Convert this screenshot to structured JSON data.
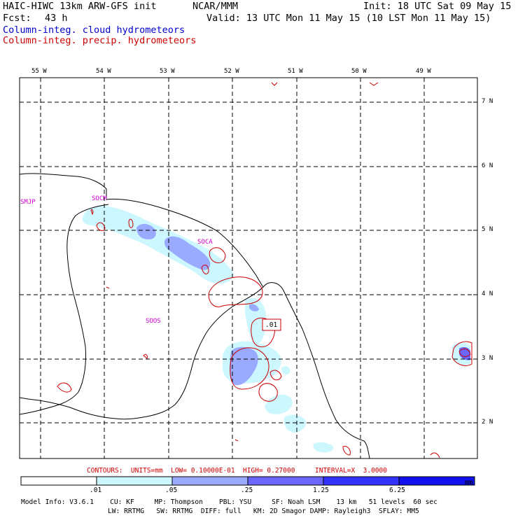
{
  "header": {
    "title_left": "HAIC-HIWC 13km ARW-GFS init",
    "org": "NCAR/MMM",
    "init": "Init: 18 UTC Sat 09 May 15",
    "fcst_label": "Fcst:",
    "fcst_value": "43 h",
    "valid": "Valid: 13 UTC Mon 11 May 15 (10 LST Mon 11 May 15)",
    "line_cloud": "Column-integ. cloud hydrometeors",
    "line_precip": "Column-integ. precip. hydrometeors"
  },
  "map": {
    "lon_labels": [
      "55 W",
      "54 W",
      "53 W",
      "52 W",
      "51 W",
      "50 W",
      "49 W"
    ],
    "lat_labels": [
      "7 N",
      "6 N",
      "5 N",
      "4 N",
      "3 N",
      "2 N"
    ],
    "stations": [
      "SMJP",
      "SOCM",
      "SOCA",
      "SOOS"
    ],
    "contour_label": ".01",
    "colors": {
      "cloud_1": "#ccf7ff",
      "cloud_2": "#99aaff",
      "cloud_3": "#6a66ff",
      "cloud_4": "#3333ff",
      "cloud_5": "#1111ee",
      "precip_contour": "#cc0000",
      "coast": "#000000"
    }
  },
  "contours_info": "CONTOURS:  UNITS=mm  LOW= 0.10000E-01  HIGH= 0.27000     INTERVAL=X  3.0000",
  "colorbar": {
    "ticks": [
      ".01",
      ".05",
      ".25",
      "1.25",
      "6.25"
    ],
    "units": "mm",
    "colors": [
      "#ffffff",
      "#ccf7ff",
      "#99aaff",
      "#6a66ff",
      "#3333ff",
      "#1111ee"
    ]
  },
  "footer": {
    "line1": "Model Info: V3.6.1    CU: KF     MP: Thompson    PBL: YSU     SF: Noah LSM    13 km   51 levels  60 sec",
    "line2": "LW: RRTMG   SW: RRTMG  DIFF: full   KM: 2D Smagor DAMP: Rayleigh3  SFLAY: MM5"
  }
}
